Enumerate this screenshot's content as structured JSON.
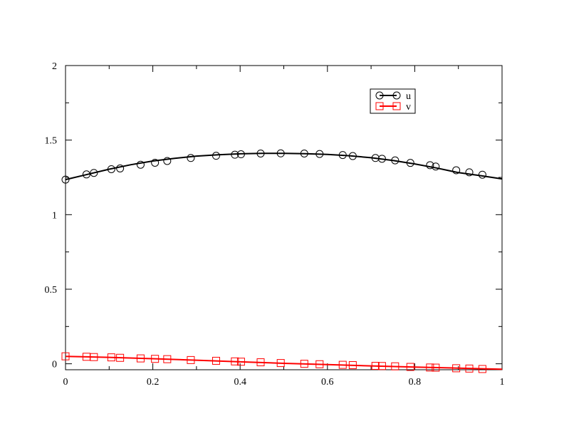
{
  "chart_data": {
    "type": "line",
    "title": "",
    "xlabel": "",
    "ylabel": "",
    "xlim": [
      0,
      1
    ],
    "ylim": [
      -0.04,
      2
    ],
    "x_ticks": [
      0,
      0.2,
      0.4,
      0.6,
      0.8,
      1
    ],
    "x_tick_labels": [
      "0",
      "0.2",
      "0.4",
      "0.6",
      "0.8",
      "1"
    ],
    "y_ticks": [
      0,
      0.5,
      1,
      1.5,
      2
    ],
    "y_tick_labels": [
      "0",
      "0.5",
      "1",
      "1.5",
      "2"
    ],
    "grid": false,
    "legend_position": "top-right",
    "series": [
      {
        "name": "u",
        "color": "#000000",
        "marker": "circle",
        "line": {
          "x": [
            0,
            0.05,
            0.1,
            0.15,
            0.2,
            0.25,
            0.3,
            0.35,
            0.4,
            0.45,
            0.5,
            0.55,
            0.6,
            0.65,
            0.7,
            0.75,
            0.8,
            0.85,
            0.9,
            0.95,
            1.0
          ],
          "y": [
            1.235,
            1.27,
            1.305,
            1.335,
            1.36,
            1.378,
            1.393,
            1.402,
            1.408,
            1.411,
            1.411,
            1.409,
            1.404,
            1.395,
            1.382,
            1.363,
            1.34,
            1.313,
            1.282,
            1.262,
            1.24
          ]
        },
        "markers": {
          "x": [
            0.0,
            0.048,
            0.065,
            0.105,
            0.125,
            0.172,
            0.205,
            0.233,
            0.287,
            0.345,
            0.388,
            0.402,
            0.447,
            0.493,
            0.547,
            0.582,
            0.635,
            0.658,
            0.71,
            0.725,
            0.755,
            0.79,
            0.835,
            0.848,
            0.895,
            0.925,
            0.955
          ],
          "y": [
            1.235,
            1.27,
            1.28,
            1.305,
            1.31,
            1.335,
            1.348,
            1.36,
            1.38,
            1.395,
            1.402,
            1.405,
            1.41,
            1.411,
            1.41,
            1.407,
            1.4,
            1.393,
            1.38,
            1.375,
            1.364,
            1.347,
            1.332,
            1.323,
            1.298,
            1.284,
            1.268
          ]
        }
      },
      {
        "name": "v",
        "color": "#ff0000",
        "marker": "square",
        "line": {
          "x": [
            0,
            0.1,
            0.2,
            0.3,
            0.4,
            0.5,
            0.6,
            0.7,
            0.8,
            0.9,
            1.0
          ],
          "y": [
            0.05,
            0.043,
            0.034,
            0.024,
            0.013,
            0.003,
            -0.005,
            -0.014,
            -0.022,
            -0.029,
            -0.036
          ]
        },
        "markers": {
          "x": [
            0.0,
            0.048,
            0.065,
            0.105,
            0.125,
            0.172,
            0.205,
            0.233,
            0.287,
            0.345,
            0.388,
            0.402,
            0.447,
            0.493,
            0.547,
            0.582,
            0.635,
            0.658,
            0.71,
            0.725,
            0.755,
            0.79,
            0.835,
            0.848,
            0.895,
            0.925,
            0.955
          ],
          "y": [
            0.05,
            0.047,
            0.045,
            0.043,
            0.04,
            0.036,
            0.033,
            0.031,
            0.025,
            0.02,
            0.016,
            0.014,
            0.01,
            0.005,
            0.0,
            -0.003,
            -0.007,
            -0.009,
            -0.014,
            -0.015,
            -0.017,
            -0.021,
            -0.025,
            -0.026,
            -0.03,
            -0.032,
            -0.035
          ]
        }
      }
    ]
  }
}
